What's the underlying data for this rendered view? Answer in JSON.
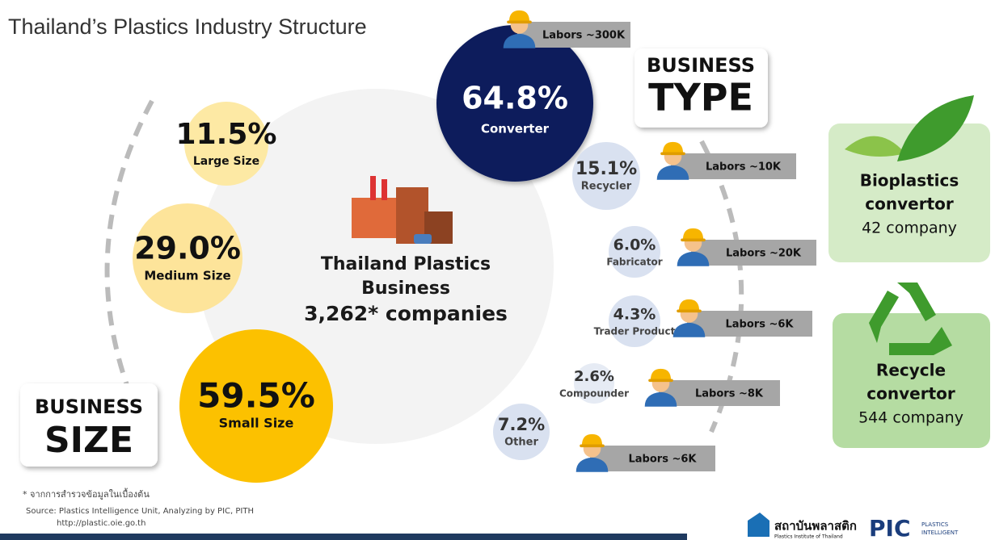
{
  "title": "Thailand’s Plastics Industry Structure",
  "center": {
    "lines": [
      "Thailand Plastics",
      "Business"
    ],
    "companies": "3,262* companies"
  },
  "business_size": {
    "label": [
      "BUSINESS",
      "SIZE"
    ],
    "items": [
      {
        "percent": "11.5%",
        "label": "Large Size"
      },
      {
        "percent": "29.0%",
        "label": "Medium Size"
      },
      {
        "percent": "59.5%",
        "label": "Small Size"
      }
    ]
  },
  "business_type": {
    "label": [
      "BUSINESS",
      "TYPE"
    ],
    "items": [
      {
        "percent": "64.8%",
        "label": "Converter",
        "labors": "Labors ~300K"
      },
      {
        "percent": "15.1%",
        "label": "Recycler",
        "labors": "Labors ~10K"
      },
      {
        "percent": "6.0%",
        "label": "Fabricator",
        "labors": "Labors ~20K"
      },
      {
        "percent": "4.3%",
        "label": "Trader Product",
        "labors": "Labors ~6K"
      },
      {
        "percent": "2.6%",
        "label": "Compounder",
        "labors": "Labors ~8K"
      },
      {
        "percent": "7.2%",
        "label": "Other",
        "labors": "Labors ~6K"
      }
    ]
  },
  "convertors": [
    {
      "lines": [
        "Bioplastics",
        "convertor"
      ],
      "count": "42 company"
    },
    {
      "lines": [
        "Recycle",
        "convertor"
      ],
      "count": "544 company"
    }
  ],
  "footnote": "* จากการสำรวจข้อมูลในเบื้องต้น",
  "source": "Source: Plastics Intelligence Unit, Analyzing by PIC, PITH",
  "url": "http://plastic.oie.go.th",
  "logos": {
    "thai": "สถาบันพลาสติก",
    "thai_sub": "Plastics Institute of Thailand",
    "pic": "PIC",
    "pic_sub": [
      "PLASTICS",
      "INTELLIGENT"
    ]
  }
}
